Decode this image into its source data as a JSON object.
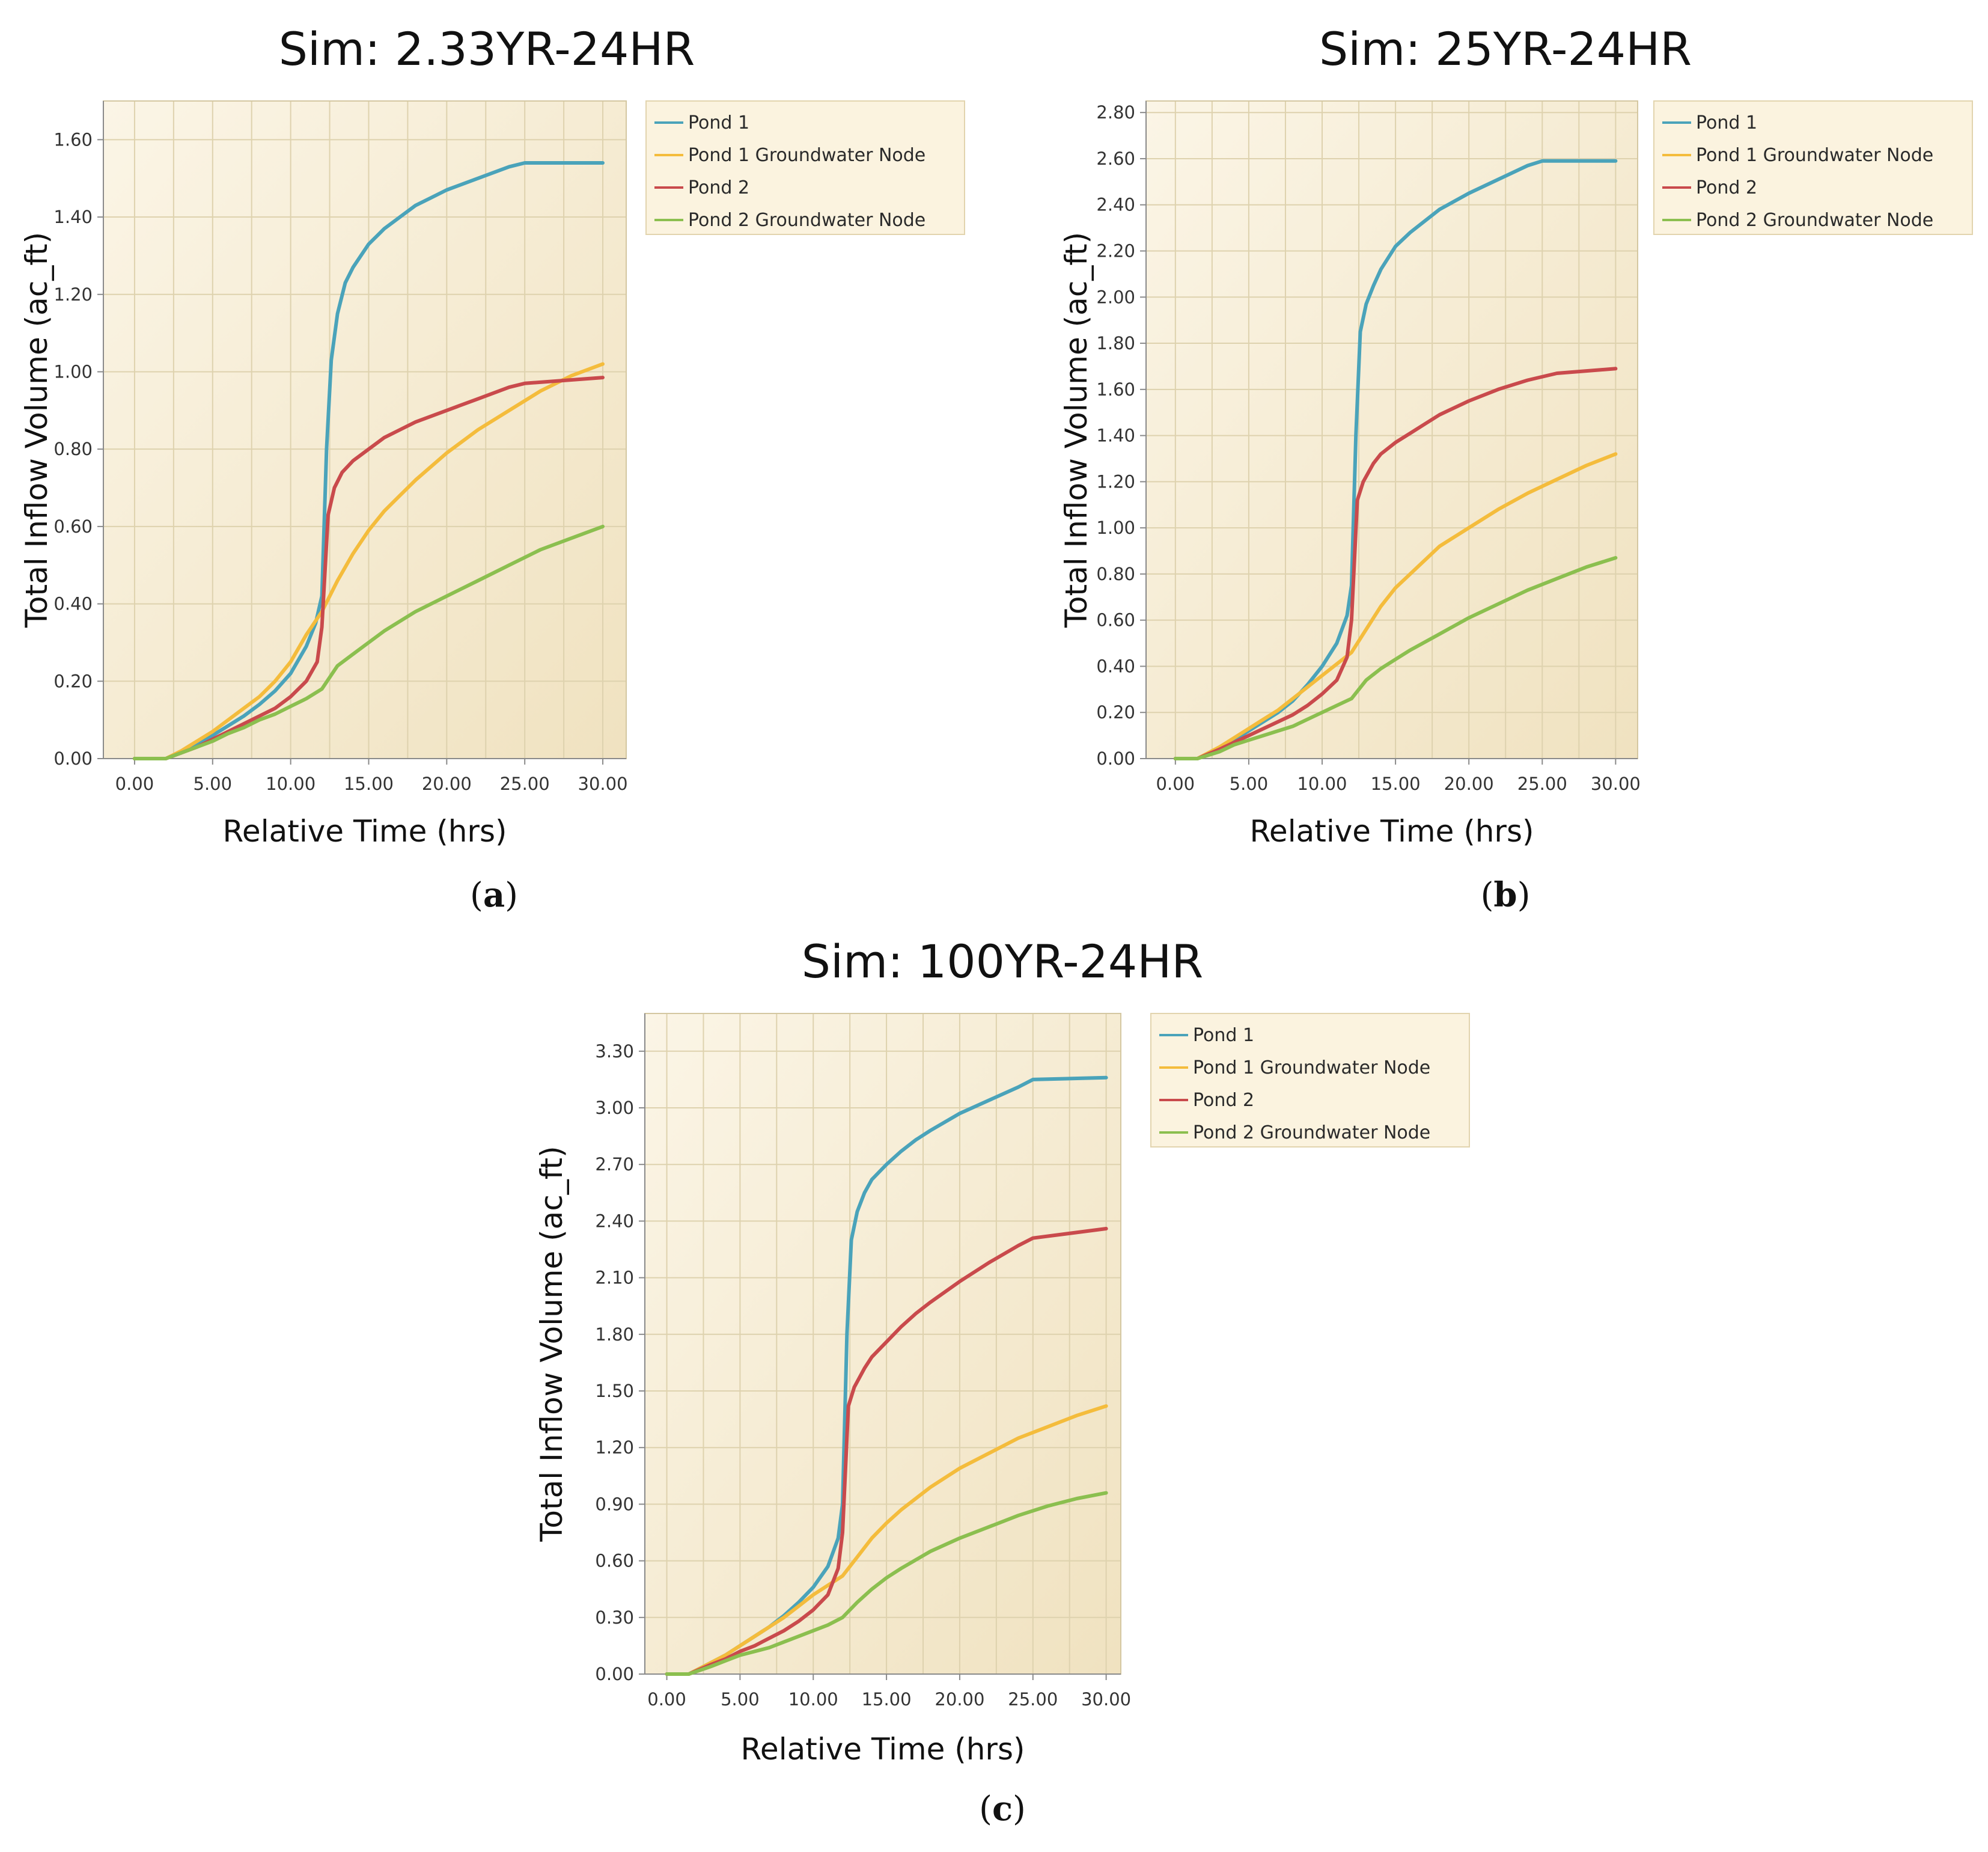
{
  "chart_data": [
    {
      "type": "line",
      "panel": "a",
      "caption": "a",
      "title": "Sim: 2.33YR-24HR",
      "xlabel": "Relative Time (hrs)",
      "ylabel": "Total Inflow Volume (ac_ft)",
      "xlim": [
        -2,
        31.5
      ],
      "ylim": [
        0,
        1.7
      ],
      "xticks": [
        0,
        5,
        10,
        15,
        20,
        25,
        30
      ],
      "xtick_labels": [
        "0.00",
        "5.00",
        "10.00",
        "15.00",
        "20.00",
        "25.00",
        "30.00"
      ],
      "yticks": [
        0,
        0.2,
        0.4,
        0.6,
        0.8,
        1.0,
        1.2,
        1.4,
        1.6
      ],
      "ytick_labels": [
        "0.00",
        "0.20",
        "0.40",
        "0.60",
        "0.80",
        "1.00",
        "1.20",
        "1.40",
        "1.60"
      ],
      "legend": "top-right",
      "series": [
        {
          "name": "Pond 1",
          "color": "#4aa3ba",
          "x": [
            0,
            2,
            3,
            4,
            5,
            6,
            7,
            8,
            9,
            10,
            11,
            11.6,
            12,
            12.3,
            12.6,
            13,
            13.5,
            14,
            15,
            16,
            17,
            18,
            19,
            20,
            22,
            24,
            25,
            30
          ],
          "y": [
            0,
            0,
            0.015,
            0.035,
            0.06,
            0.085,
            0.11,
            0.14,
            0.175,
            0.22,
            0.29,
            0.35,
            0.42,
            0.8,
            1.03,
            1.15,
            1.23,
            1.27,
            1.33,
            1.37,
            1.4,
            1.43,
            1.45,
            1.47,
            1.5,
            1.53,
            1.54,
            1.54
          ]
        },
        {
          "name": "Pond 1 Groundwater Node",
          "color": "#f4bc3c",
          "x": [
            0,
            2,
            3,
            4,
            5,
            6,
            7,
            8,
            9,
            10,
            11,
            12,
            13,
            14,
            15,
            16,
            17,
            18,
            20,
            22,
            24,
            26,
            28,
            30
          ],
          "y": [
            0,
            0,
            0.02,
            0.045,
            0.07,
            0.1,
            0.13,
            0.16,
            0.2,
            0.25,
            0.32,
            0.38,
            0.46,
            0.53,
            0.59,
            0.64,
            0.68,
            0.72,
            0.79,
            0.85,
            0.9,
            0.95,
            0.99,
            1.02
          ]
        },
        {
          "name": "Pond 2",
          "color": "#c94a4c",
          "x": [
            0,
            2,
            3,
            4,
            5,
            6,
            7,
            8,
            9,
            10,
            11,
            11.7,
            12,
            12.4,
            12.8,
            13.3,
            14,
            15,
            16,
            17,
            18,
            20,
            22,
            24,
            25,
            30
          ],
          "y": [
            0,
            0,
            0.015,
            0.03,
            0.05,
            0.07,
            0.09,
            0.11,
            0.13,
            0.16,
            0.2,
            0.25,
            0.34,
            0.63,
            0.7,
            0.74,
            0.77,
            0.8,
            0.83,
            0.85,
            0.87,
            0.9,
            0.93,
            0.96,
            0.97,
            0.985
          ]
        },
        {
          "name": "Pond 2 Groundwater Node",
          "color": "#8bbf4f",
          "x": [
            0,
            2,
            3,
            4,
            5,
            6,
            7,
            8,
            9,
            10,
            11,
            12,
            13,
            14,
            15,
            16,
            18,
            20,
            22,
            24,
            26,
            28,
            30
          ],
          "y": [
            0,
            0,
            0.015,
            0.03,
            0.045,
            0.065,
            0.08,
            0.1,
            0.115,
            0.135,
            0.155,
            0.18,
            0.24,
            0.27,
            0.3,
            0.33,
            0.38,
            0.42,
            0.46,
            0.5,
            0.54,
            0.57,
            0.6
          ]
        }
      ]
    },
    {
      "type": "line",
      "panel": "b",
      "caption": "b",
      "title": "Sim: 25YR-24HR",
      "xlabel": "Relative Time (hrs)",
      "ylabel": "Total Inflow Volume (ac_ft)",
      "xlim": [
        -2,
        31.5
      ],
      "ylim": [
        0,
        2.85
      ],
      "xticks": [
        0,
        5,
        10,
        15,
        20,
        25,
        30
      ],
      "xtick_labels": [
        "0.00",
        "5.00",
        "10.00",
        "15.00",
        "20.00",
        "25.00",
        "30.00"
      ],
      "yticks": [
        0,
        0.2,
        0.4,
        0.6,
        0.8,
        1.0,
        1.2,
        1.4,
        1.6,
        1.8,
        2.0,
        2.2,
        2.4,
        2.6,
        2.8
      ],
      "ytick_labels": [
        "0.00",
        "0.20",
        "0.40",
        "0.60",
        "0.80",
        "1.00",
        "1.20",
        "1.40",
        "1.60",
        "1.80",
        "2.00",
        "2.20",
        "2.40",
        "2.60",
        "2.80"
      ],
      "legend": "top-right",
      "series": [
        {
          "name": "Pond 1",
          "color": "#4aa3ba",
          "x": [
            0,
            1.5,
            3,
            4,
            5,
            6,
            7,
            8,
            9,
            10,
            11,
            11.7,
            12,
            12.3,
            12.6,
            13,
            13.5,
            14,
            15,
            16,
            17,
            18,
            20,
            22,
            24,
            25,
            30
          ],
          "y": [
            0,
            0,
            0.04,
            0.08,
            0.12,
            0.16,
            0.2,
            0.25,
            0.32,
            0.4,
            0.5,
            0.62,
            0.75,
            1.4,
            1.85,
            1.97,
            2.05,
            2.12,
            2.22,
            2.28,
            2.33,
            2.38,
            2.45,
            2.51,
            2.57,
            2.59,
            2.59
          ]
        },
        {
          "name": "Pond 1 Groundwater Node",
          "color": "#f4bc3c",
          "x": [
            0,
            1.5,
            3,
            4,
            5,
            6,
            7,
            8,
            9,
            10,
            11,
            12,
            13,
            14,
            15,
            16,
            18,
            20,
            22,
            24,
            26,
            28,
            30
          ],
          "y": [
            0,
            0,
            0.05,
            0.09,
            0.13,
            0.17,
            0.21,
            0.26,
            0.31,
            0.36,
            0.41,
            0.46,
            0.56,
            0.66,
            0.74,
            0.8,
            0.92,
            1.0,
            1.08,
            1.15,
            1.21,
            1.27,
            1.32
          ]
        },
        {
          "name": "Pond 2",
          "color": "#c94a4c",
          "x": [
            0,
            1.5,
            3,
            4,
            5,
            6,
            7,
            8,
            9,
            10,
            11,
            11.7,
            12,
            12.4,
            12.8,
            13.5,
            14,
            15,
            16,
            17,
            18,
            20,
            22,
            24,
            26,
            30
          ],
          "y": [
            0,
            0,
            0.04,
            0.07,
            0.1,
            0.13,
            0.16,
            0.19,
            0.23,
            0.28,
            0.34,
            0.44,
            0.6,
            1.12,
            1.2,
            1.28,
            1.32,
            1.37,
            1.41,
            1.45,
            1.49,
            1.55,
            1.6,
            1.64,
            1.67,
            1.69
          ]
        },
        {
          "name": "Pond 2 Groundwater Node",
          "color": "#8bbf4f",
          "x": [
            0,
            1.5,
            3,
            4,
            5,
            6,
            7,
            8,
            9,
            10,
            11,
            12,
            13,
            14,
            15,
            16,
            18,
            20,
            22,
            24,
            26,
            28,
            30
          ],
          "y": [
            0,
            0,
            0.03,
            0.06,
            0.08,
            0.1,
            0.12,
            0.14,
            0.17,
            0.2,
            0.23,
            0.26,
            0.34,
            0.39,
            0.43,
            0.47,
            0.54,
            0.61,
            0.67,
            0.73,
            0.78,
            0.83,
            0.87
          ]
        }
      ]
    },
    {
      "type": "line",
      "panel": "c",
      "caption": "c",
      "title": "Sim: 100YR-24HR",
      "xlabel": "Relative Time (hrs)",
      "ylabel": "Total Inflow Volume (ac_ft)",
      "xlim": [
        -1.5,
        31
      ],
      "ylim": [
        0,
        3.5
      ],
      "xticks": [
        0,
        5,
        10,
        15,
        20,
        25,
        30
      ],
      "xtick_labels": [
        "0.00",
        "5.00",
        "10.00",
        "15.00",
        "20.00",
        "25.00",
        "30.00"
      ],
      "yticks": [
        0,
        0.3,
        0.6,
        0.9,
        1.2,
        1.5,
        1.8,
        2.1,
        2.4,
        2.7,
        3.0,
        3.3
      ],
      "ytick_labels": [
        "0.00",
        "0.30",
        "0.60",
        "0.90",
        "1.20",
        "1.50",
        "1.80",
        "2.10",
        "2.40",
        "2.70",
        "3.00",
        "3.30"
      ],
      "legend": "top-right",
      "series": [
        {
          "name": "Pond 1",
          "color": "#4aa3ba",
          "x": [
            0,
            1.5,
            3,
            4,
            5,
            6,
            7,
            8,
            9,
            10,
            11,
            11.7,
            12,
            12.3,
            12.6,
            13,
            13.5,
            14,
            15,
            16,
            17,
            18,
            20,
            22,
            24,
            25,
            30
          ],
          "y": [
            0,
            0,
            0.06,
            0.1,
            0.15,
            0.2,
            0.25,
            0.31,
            0.38,
            0.46,
            0.57,
            0.72,
            0.9,
            1.8,
            2.3,
            2.45,
            2.55,
            2.62,
            2.7,
            2.77,
            2.83,
            2.88,
            2.97,
            3.04,
            3.11,
            3.15,
            3.16
          ]
        },
        {
          "name": "Pond 1 Groundwater Node",
          "color": "#f4bc3c",
          "x": [
            0,
            1.5,
            3,
            4,
            5,
            6,
            7,
            8,
            9,
            10,
            11,
            12,
            13,
            14,
            15,
            16,
            18,
            20,
            22,
            24,
            26,
            28,
            30
          ],
          "y": [
            0,
            0,
            0.06,
            0.1,
            0.15,
            0.2,
            0.25,
            0.3,
            0.36,
            0.42,
            0.47,
            0.52,
            0.62,
            0.72,
            0.8,
            0.87,
            0.99,
            1.09,
            1.17,
            1.25,
            1.31,
            1.37,
            1.42
          ]
        },
        {
          "name": "Pond 2",
          "color": "#c94a4c",
          "x": [
            0,
            1.5,
            3,
            4,
            5,
            6,
            7,
            8,
            9,
            10,
            11,
            11.7,
            12,
            12.4,
            12.8,
            13.5,
            14,
            15,
            16,
            17,
            18,
            20,
            22,
            24,
            25,
            30
          ],
          "y": [
            0,
            0,
            0.05,
            0.08,
            0.12,
            0.15,
            0.19,
            0.23,
            0.28,
            0.34,
            0.42,
            0.56,
            0.75,
            1.42,
            1.52,
            1.62,
            1.68,
            1.76,
            1.84,
            1.91,
            1.97,
            2.08,
            2.18,
            2.27,
            2.31,
            2.36
          ]
        },
        {
          "name": "Pond 2 Groundwater Node",
          "color": "#8bbf4f",
          "x": [
            0,
            1.5,
            3,
            4,
            5,
            6,
            7,
            8,
            9,
            10,
            11,
            12,
            13,
            14,
            15,
            16,
            18,
            20,
            22,
            24,
            26,
            28,
            30
          ],
          "y": [
            0,
            0,
            0.04,
            0.07,
            0.1,
            0.12,
            0.14,
            0.17,
            0.2,
            0.23,
            0.26,
            0.3,
            0.38,
            0.45,
            0.51,
            0.56,
            0.65,
            0.72,
            0.78,
            0.84,
            0.89,
            0.93,
            0.96
          ]
        }
      ]
    }
  ]
}
